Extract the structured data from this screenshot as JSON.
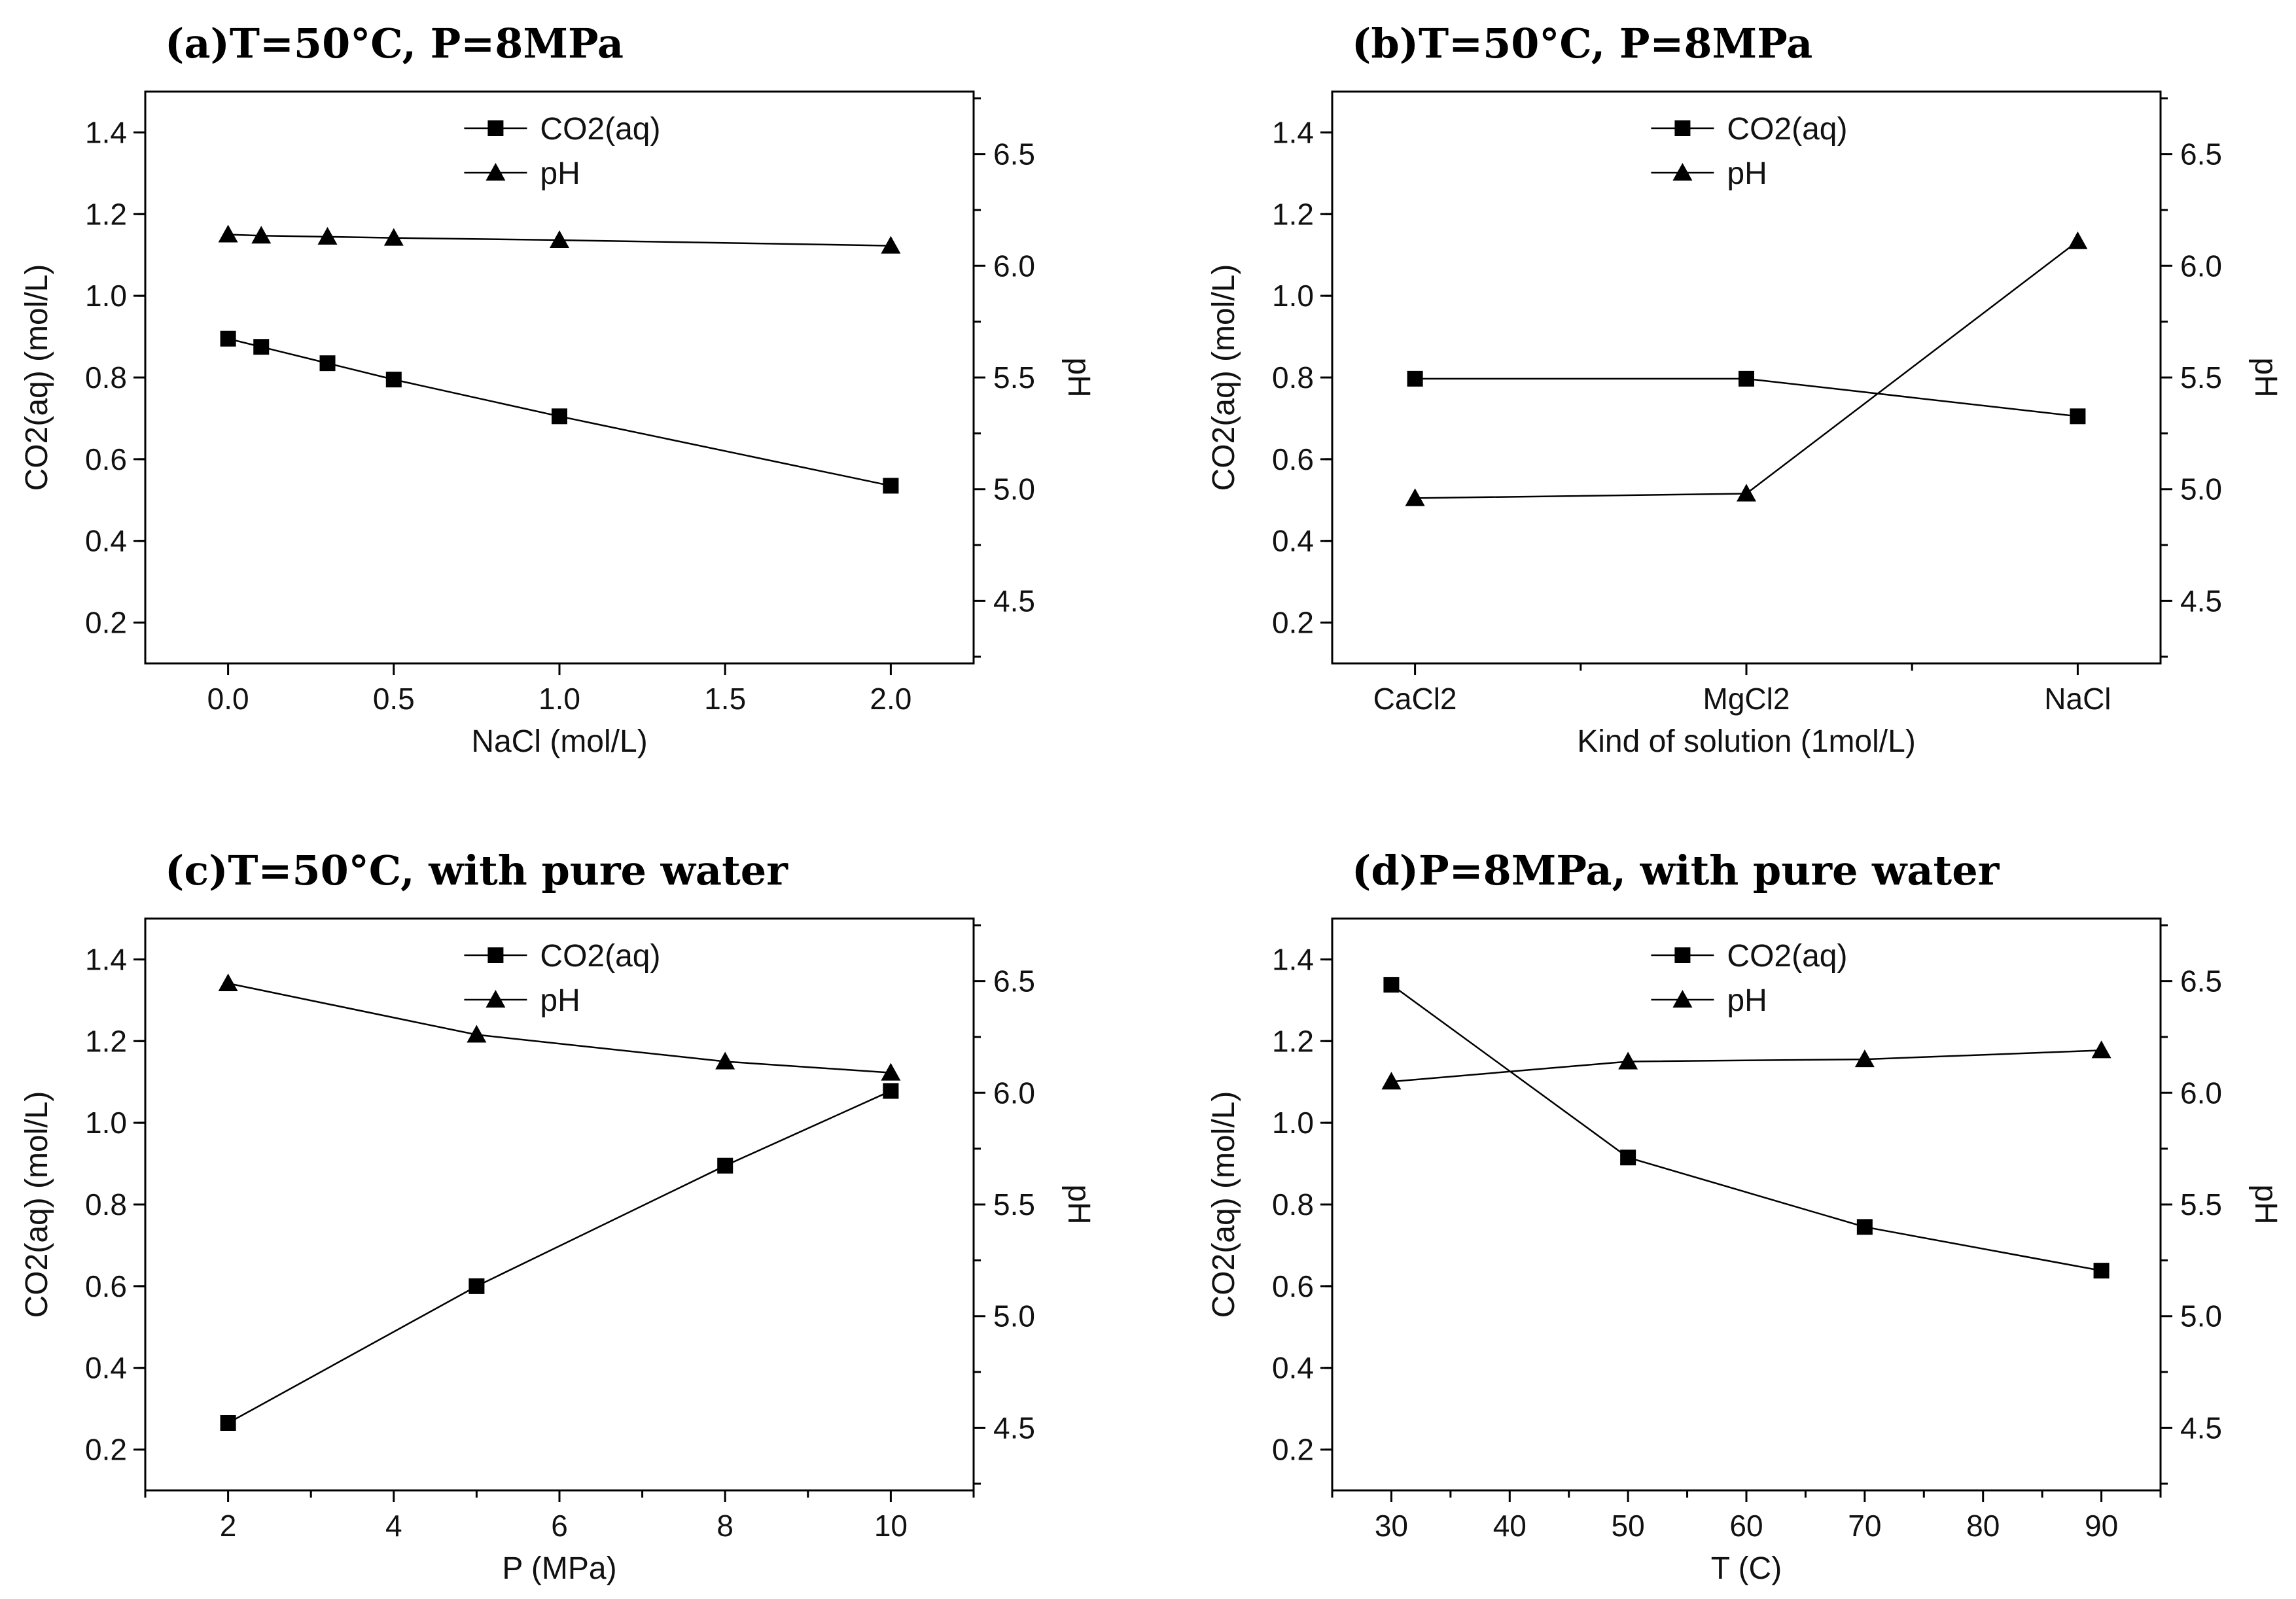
{
  "chart_data": [
    {
      "type": "line",
      "title": "(a)T=50°C, P=8MPa",
      "xlabel": "NaCl (mol/L)",
      "ylabel": "CO2(aq) (mol/L)",
      "y2label": "pH",
      "x_type": "numeric",
      "xlim": [
        -0.25,
        2.25
      ],
      "xticks": [
        0.0,
        0.5,
        1.0,
        1.5,
        2.0
      ],
      "xtick_labels": [
        "0.0",
        "0.5",
        "1.0",
        "1.5",
        "2.0"
      ],
      "ylim": [
        0.1,
        1.5
      ],
      "yticks": [
        0.2,
        0.4,
        0.6,
        0.8,
        1.0,
        1.2,
        1.4
      ],
      "ytick_labels": [
        "0.2",
        "0.4",
        "0.6",
        "0.8",
        "1.0",
        "1.2",
        "1.4"
      ],
      "y2lim": [
        4.22,
        6.78
      ],
      "y2ticks": [
        4.5,
        5.0,
        5.5,
        6.0,
        6.5
      ],
      "y2tick_labels": [
        "4.5",
        "5.0",
        "5.5",
        "6.0",
        "6.5"
      ],
      "legend": {
        "position": "top-center",
        "entries": [
          "CO2(aq)",
          "pH"
        ]
      },
      "series": [
        {
          "name": "CO2(aq)",
          "axis": "left",
          "marker": "square",
          "x": [
            0.0,
            0.1,
            0.3,
            0.5,
            1.0,
            2.0
          ],
          "values": [
            0.895,
            0.875,
            0.835,
            0.795,
            0.705,
            0.535
          ]
        },
        {
          "name": "pH",
          "axis": "right",
          "marker": "triangle",
          "x": [
            0.0,
            0.1,
            0.3,
            0.5,
            1.0,
            2.0
          ],
          "values": [
            6.14,
            6.135,
            6.13,
            6.125,
            6.115,
            6.09
          ]
        }
      ]
    },
    {
      "type": "line",
      "title": "(b)T=50°C, P=8MPa",
      "xlabel": "Kind of solution (1mol/L)",
      "ylabel": "CO2(aq) (mol/L)",
      "y2label": "pH",
      "x_type": "categorical",
      "categories": [
        "CaCl2",
        "MgCl2",
        "NaCl"
      ],
      "xlim": [
        -0.25,
        2.25
      ],
      "xticks": [
        0,
        0.5,
        1,
        1.5,
        2
      ],
      "xtick_labels": [
        "CaCl2",
        "",
        "MgCl2",
        "",
        "NaCl"
      ],
      "ylim": [
        0.1,
        1.5
      ],
      "yticks": [
        0.2,
        0.4,
        0.6,
        0.8,
        1.0,
        1.2,
        1.4
      ],
      "ytick_labels": [
        "0.2",
        "0.4",
        "0.6",
        "0.8",
        "1.0",
        "1.2",
        "1.4"
      ],
      "y2lim": [
        4.22,
        6.78
      ],
      "y2ticks": [
        4.5,
        5.0,
        5.5,
        6.0,
        6.5
      ],
      "y2tick_labels": [
        "4.5",
        "5.0",
        "5.5",
        "6.0",
        "6.5"
      ],
      "legend": {
        "position": "top-center",
        "entries": [
          "CO2(aq)",
          "pH"
        ]
      },
      "series": [
        {
          "name": "CO2(aq)",
          "axis": "left",
          "marker": "square",
          "x": [
            0,
            1,
            2
          ],
          "values": [
            0.797,
            0.797,
            0.705
          ]
        },
        {
          "name": "pH",
          "axis": "right",
          "marker": "triangle",
          "x": [
            0,
            1,
            2
          ],
          "values": [
            4.96,
            4.98,
            6.11
          ]
        }
      ]
    },
    {
      "type": "line",
      "title": "(c)T=50°C, with pure water",
      "xlabel": "P (MPa)",
      "ylabel": "CO2(aq) (mol/L)",
      "y2label": "pH",
      "x_type": "numeric",
      "xlim": [
        1,
        11
      ],
      "xticks": [
        1,
        2,
        3,
        4,
        5,
        6,
        7,
        8,
        9,
        10,
        11
      ],
      "xtick_labels": [
        "",
        "2",
        "",
        "4",
        "",
        "6",
        "",
        "8",
        "",
        "10",
        ""
      ],
      "ylim": [
        0.1,
        1.5
      ],
      "yticks": [
        0.2,
        0.4,
        0.6,
        0.8,
        1.0,
        1.2,
        1.4
      ],
      "ytick_labels": [
        "0.2",
        "0.4",
        "0.6",
        "0.8",
        "1.0",
        "1.2",
        "1.4"
      ],
      "y2lim": [
        4.22,
        6.78
      ],
      "y2ticks": [
        4.5,
        5.0,
        5.5,
        6.0,
        6.5
      ],
      "y2tick_labels": [
        "4.5",
        "5.0",
        "5.5",
        "6.0",
        "6.5"
      ],
      "legend": {
        "position": "top-center",
        "entries": [
          "CO2(aq)",
          "pH"
        ]
      },
      "series": [
        {
          "name": "CO2(aq)",
          "axis": "left",
          "marker": "square",
          "x": [
            2,
            5,
            8,
            10
          ],
          "values": [
            0.265,
            0.6,
            0.895,
            1.078
          ]
        },
        {
          "name": "pH",
          "axis": "right",
          "marker": "triangle",
          "x": [
            2,
            5,
            8,
            10
          ],
          "values": [
            6.49,
            6.26,
            6.14,
            6.09
          ]
        }
      ]
    },
    {
      "type": "line",
      "title": "(d)P=8MPa, with pure water",
      "xlabel": "T (C)",
      "ylabel": "CO2(aq) (mol/L)",
      "y2label": "pH",
      "x_type": "numeric",
      "xlim": [
        25,
        95
      ],
      "xticks": [
        25,
        30,
        35,
        40,
        45,
        50,
        55,
        60,
        65,
        70,
        75,
        80,
        85,
        90,
        95
      ],
      "xtick_labels": [
        "",
        "30",
        "",
        "40",
        "",
        "50",
        "",
        "60",
        "",
        "70",
        "",
        "80",
        "",
        "90",
        ""
      ],
      "ylim": [
        0.1,
        1.5
      ],
      "yticks": [
        0.2,
        0.4,
        0.6,
        0.8,
        1.0,
        1.2,
        1.4
      ],
      "ytick_labels": [
        "0.2",
        "0.4",
        "0.6",
        "0.8",
        "1.0",
        "1.2",
        "1.4"
      ],
      "y2lim": [
        4.22,
        6.78
      ],
      "y2ticks": [
        4.5,
        5.0,
        5.5,
        6.0,
        6.5
      ],
      "y2tick_labels": [
        "4.5",
        "5.0",
        "5.5",
        "6.0",
        "6.5"
      ],
      "legend": {
        "position": "top-center",
        "entries": [
          "CO2(aq)",
          "pH"
        ]
      },
      "series": [
        {
          "name": "CO2(aq)",
          "axis": "left",
          "marker": "square",
          "x": [
            30,
            50,
            70,
            90
          ],
          "values": [
            1.338,
            0.915,
            0.745,
            0.638
          ]
        },
        {
          "name": "pH",
          "axis": "right",
          "marker": "triangle",
          "x": [
            30,
            50,
            70,
            90
          ],
          "values": [
            6.05,
            6.14,
            6.15,
            6.19
          ]
        }
      ]
    }
  ]
}
